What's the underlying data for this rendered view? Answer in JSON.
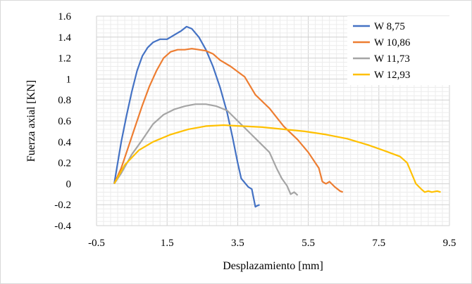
{
  "chart_data": {
    "type": "line",
    "xlabel": "Desplazamiento  [mm]",
    "ylabel": "Fuerza axial [KN]",
    "xlim": [
      -0.5,
      9.5
    ],
    "ylim": [
      -0.4,
      1.6
    ],
    "xticks": [
      "-0.5",
      "1.5",
      "3.5",
      "5.5",
      "7.5",
      "9.5"
    ],
    "yticks": [
      "1.6",
      "1.4",
      "1.2",
      "1",
      "0.8",
      "0.6",
      "0.4",
      "0.2",
      "0",
      "-0.2",
      "-0.4"
    ],
    "grid": true,
    "legend_position": "top-right",
    "series": [
      {
        "name": "W 8,75",
        "color": "#4472C4",
        "points": [
          [
            0,
            0
          ],
          [
            0.1,
            0.2
          ],
          [
            0.2,
            0.4
          ],
          [
            0.35,
            0.65
          ],
          [
            0.5,
            0.88
          ],
          [
            0.65,
            1.08
          ],
          [
            0.8,
            1.22
          ],
          [
            0.95,
            1.3
          ],
          [
            1.1,
            1.35
          ],
          [
            1.3,
            1.38
          ],
          [
            1.5,
            1.38
          ],
          [
            1.7,
            1.42
          ],
          [
            1.9,
            1.46
          ],
          [
            2.05,
            1.5
          ],
          [
            2.2,
            1.48
          ],
          [
            2.4,
            1.4
          ],
          [
            2.6,
            1.28
          ],
          [
            2.8,
            1.12
          ],
          [
            3.0,
            0.92
          ],
          [
            3.2,
            0.68
          ],
          [
            3.35,
            0.45
          ],
          [
            3.5,
            0.2
          ],
          [
            3.6,
            0.05
          ],
          [
            3.8,
            -0.03
          ],
          [
            3.9,
            -0.05
          ],
          [
            4.0,
            -0.22
          ],
          [
            4.05,
            -0.21
          ],
          [
            4.12,
            -0.2
          ]
        ]
      },
      {
        "name": "W 10,86",
        "color": "#ED7D31",
        "points": [
          [
            0,
            0
          ],
          [
            0.2,
            0.15
          ],
          [
            0.4,
            0.35
          ],
          [
            0.6,
            0.55
          ],
          [
            0.8,
            0.75
          ],
          [
            1.0,
            0.93
          ],
          [
            1.2,
            1.08
          ],
          [
            1.4,
            1.2
          ],
          [
            1.6,
            1.26
          ],
          [
            1.8,
            1.28
          ],
          [
            2.0,
            1.28
          ],
          [
            2.2,
            1.29
          ],
          [
            2.4,
            1.28
          ],
          [
            2.6,
            1.27
          ],
          [
            2.8,
            1.24
          ],
          [
            3.0,
            1.18
          ],
          [
            3.3,
            1.12
          ],
          [
            3.7,
            1.02
          ],
          [
            4.0,
            0.85
          ],
          [
            4.4,
            0.72
          ],
          [
            4.8,
            0.55
          ],
          [
            5.2,
            0.42
          ],
          [
            5.5,
            0.3
          ],
          [
            5.8,
            0.15
          ],
          [
            5.9,
            0.02
          ],
          [
            6.0,
            0.0
          ],
          [
            6.1,
            0.02
          ],
          [
            6.25,
            -0.03
          ],
          [
            6.4,
            -0.07
          ],
          [
            6.48,
            -0.08
          ]
        ]
      },
      {
        "name": "W 11,73",
        "color": "#A5A5A5",
        "points": [
          [
            0,
            0
          ],
          [
            0.2,
            0.1
          ],
          [
            0.5,
            0.28
          ],
          [
            0.8,
            0.42
          ],
          [
            1.1,
            0.57
          ],
          [
            1.4,
            0.66
          ],
          [
            1.7,
            0.71
          ],
          [
            2.0,
            0.74
          ],
          [
            2.3,
            0.76
          ],
          [
            2.6,
            0.76
          ],
          [
            2.9,
            0.74
          ],
          [
            3.2,
            0.7
          ],
          [
            3.5,
            0.6
          ],
          [
            3.8,
            0.5
          ],
          [
            4.1,
            0.4
          ],
          [
            4.4,
            0.3
          ],
          [
            4.6,
            0.15
          ],
          [
            4.75,
            0.05
          ],
          [
            4.9,
            -0.02
          ],
          [
            5.0,
            -0.1
          ],
          [
            5.1,
            -0.08
          ],
          [
            5.2,
            -0.11
          ]
        ]
      },
      {
        "name": "W 12,93",
        "color": "#FFC000",
        "points": [
          [
            0,
            0
          ],
          [
            0.3,
            0.18
          ],
          [
            0.7,
            0.32
          ],
          [
            1.1,
            0.4
          ],
          [
            1.6,
            0.47
          ],
          [
            2.1,
            0.52
          ],
          [
            2.6,
            0.55
          ],
          [
            3.1,
            0.56
          ],
          [
            3.6,
            0.55
          ],
          [
            4.2,
            0.54
          ],
          [
            4.8,
            0.52
          ],
          [
            5.4,
            0.5
          ],
          [
            6.0,
            0.47
          ],
          [
            6.6,
            0.43
          ],
          [
            7.2,
            0.37
          ],
          [
            7.7,
            0.31
          ],
          [
            8.1,
            0.26
          ],
          [
            8.3,
            0.2
          ],
          [
            8.45,
            0.08
          ],
          [
            8.55,
            0.0
          ],
          [
            8.7,
            -0.05
          ],
          [
            8.8,
            -0.08
          ],
          [
            8.9,
            -0.07
          ],
          [
            9.0,
            -0.08
          ],
          [
            9.15,
            -0.07
          ],
          [
            9.25,
            -0.08
          ]
        ]
      }
    ]
  }
}
